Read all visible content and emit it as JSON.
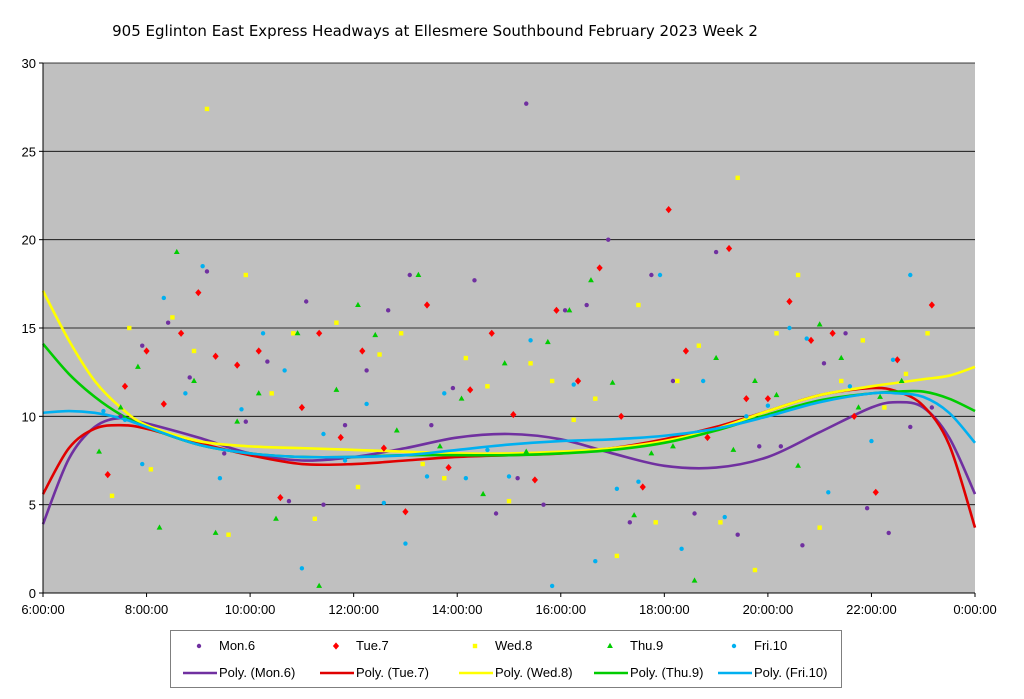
{
  "chart_data": {
    "type": "scatter",
    "title": "905 Eglinton East Express Headways at Ellesmere Southbound February 2023  Week 2",
    "xlabel": "",
    "ylabel": "",
    "xlim": [
      "6:00:00",
      "0:00:00"
    ],
    "ylim": [
      0,
      30
    ],
    "x_ticks": [
      "6:00:00",
      "8:00:00",
      "10:00:00",
      "12:00:00",
      "14:00:00",
      "16:00:00",
      "18:00:00",
      "20:00:00",
      "22:00:00",
      "0:00:00"
    ],
    "y_ticks": [
      0,
      5,
      10,
      15,
      20,
      25,
      30
    ],
    "grid": "horizontal",
    "background": "#c0c0c0",
    "legend_position": "bottom",
    "series": [
      {
        "name": "Mon.6",
        "marker": "circle",
        "color": "#7030a0",
        "x": [
          "7:30",
          "7:55",
          "8:25",
          "8:50",
          "9:10",
          "9:30",
          "9:55",
          "10:20",
          "10:45",
          "11:05",
          "11:25",
          "11:50",
          "12:15",
          "12:40",
          "13:05",
          "13:30",
          "13:55",
          "14:20",
          "14:45",
          "15:10",
          "15:20",
          "15:40",
          "16:05",
          "16:30",
          "16:55",
          "17:20",
          "17:45",
          "18:10",
          "18:35",
          "19:00",
          "19:25",
          "19:50",
          "20:15",
          "20:40",
          "21:05",
          "21:30",
          "21:55",
          "22:20",
          "22:45",
          "23:10"
        ],
        "y": [
          10,
          14,
          15.3,
          12.2,
          18.2,
          7.9,
          9.7,
          13.1,
          5.2,
          16.5,
          5,
          9.5,
          12.6,
          16,
          18,
          9.5,
          11.6,
          17.7,
          4.5,
          6.5,
          27.7,
          5,
          16,
          16.3,
          20,
          4,
          18,
          12,
          4.5,
          19.3,
          3.3,
          8.3,
          8.3,
          2.7,
          13,
          14.7,
          4.8,
          3.4,
          9.4,
          10.5
        ]
      },
      {
        "name": "Tue.7",
        "marker": "diamond",
        "color": "#ff0000",
        "x": [
          "7:15",
          "7:35",
          "8:00",
          "8:20",
          "8:40",
          "9:00",
          "9:20",
          "9:45",
          "10:10",
          "10:35",
          "11:00",
          "11:20",
          "11:45",
          "12:10",
          "12:35",
          "13:00",
          "13:25",
          "13:50",
          "14:15",
          "14:40",
          "15:05",
          "15:30",
          "15:55",
          "16:20",
          "16:45",
          "17:10",
          "17:35",
          "18:05",
          "18:25",
          "18:50",
          "19:15",
          "19:35",
          "20:00",
          "20:25",
          "20:50",
          "21:15",
          "21:40",
          "22:05",
          "22:30",
          "23:10"
        ],
        "y": [
          6.7,
          11.7,
          13.7,
          10.7,
          14.7,
          17,
          13.4,
          12.9,
          13.7,
          5.4,
          10.5,
          14.7,
          8.8,
          13.7,
          8.2,
          4.6,
          16.3,
          7.1,
          11.5,
          14.7,
          10.1,
          6.4,
          16,
          12,
          18.4,
          10,
          6,
          21.7,
          13.7,
          8.8,
          19.5,
          11,
          11,
          16.5,
          14.3,
          14.7,
          10,
          5.7,
          13.2,
          16.3
        ]
      },
      {
        "name": "Wed.8",
        "marker": "square",
        "color": "#ffff00",
        "x": [
          "7:20",
          "7:40",
          "8:05",
          "8:30",
          "8:55",
          "9:10",
          "9:35",
          "9:55",
          "10:25",
          "10:50",
          "11:15",
          "11:40",
          "12:05",
          "12:30",
          "12:55",
          "13:20",
          "13:45",
          "14:10",
          "14:35",
          "15:00",
          "15:25",
          "15:50",
          "16:15",
          "16:40",
          "17:05",
          "17:30",
          "17:50",
          "18:15",
          "18:40",
          "19:05",
          "19:25",
          "19:45",
          "20:10",
          "20:35",
          "21:00",
          "21:25",
          "21:50",
          "22:15",
          "22:40",
          "23:05"
        ],
        "y": [
          5.5,
          15,
          7,
          15.6,
          13.7,
          27.4,
          3.3,
          18,
          11.3,
          14.7,
          4.2,
          15.3,
          6,
          13.5,
          14.7,
          7.3,
          6.5,
          13.3,
          11.7,
          5.2,
          13,
          12,
          9.8,
          11,
          2.1,
          16.3,
          4,
          12,
          14,
          4,
          23.5,
          1.3,
          14.7,
          18,
          3.7,
          12,
          14.3,
          10.5,
          12.4,
          14.7
        ]
      },
      {
        "name": "Thu.9",
        "marker": "triangle",
        "color": "#00cc00",
        "x": [
          "7:05",
          "7:30",
          "7:50",
          "8:15",
          "8:35",
          "8:55",
          "9:20",
          "9:45",
          "10:10",
          "10:30",
          "10:55",
          "11:20",
          "11:40",
          "12:05",
          "12:25",
          "12:50",
          "13:15",
          "13:40",
          "14:05",
          "14:30",
          "14:55",
          "15:20",
          "15:45",
          "16:10",
          "16:35",
          "17:00",
          "17:25",
          "17:45",
          "18:10",
          "18:35",
          "19:00",
          "19:20",
          "19:45",
          "20:10",
          "20:35",
          "21:00",
          "21:25",
          "21:45",
          "22:10",
          "22:35"
        ],
        "y": [
          8,
          10.5,
          12.8,
          3.7,
          19.3,
          12,
          3.4,
          9.7,
          11.3,
          4.2,
          14.7,
          0.4,
          11.5,
          16.3,
          14.6,
          9.2,
          18,
          8.3,
          11,
          5.6,
          13,
          8,
          14.2,
          16,
          17.7,
          11.9,
          4.4,
          7.9,
          8.3,
          0.7,
          13.3,
          8.1,
          12,
          11.2,
          7.2,
          15.2,
          13.3,
          10.5,
          11.1,
          12
        ]
      },
      {
        "name": "Fri.10",
        "marker": "circle",
        "color": "#00b0f0",
        "x": [
          "7:10",
          "7:35",
          "7:55",
          "8:20",
          "8:45",
          "9:05",
          "9:25",
          "9:50",
          "10:15",
          "10:40",
          "11:00",
          "11:25",
          "11:50",
          "12:15",
          "12:35",
          "13:00",
          "13:25",
          "13:45",
          "14:10",
          "14:35",
          "15:00",
          "15:25",
          "15:50",
          "16:15",
          "16:40",
          "17:05",
          "17:30",
          "17:55",
          "18:20",
          "18:45",
          "19:10",
          "19:35",
          "20:00",
          "20:25",
          "20:45",
          "21:10",
          "21:35",
          "22:00",
          "22:25",
          "22:45"
        ],
        "y": [
          10.3,
          9.8,
          7.3,
          16.7,
          11.3,
          18.5,
          6.5,
          10.4,
          14.7,
          12.6,
          1.4,
          9,
          7.5,
          10.7,
          5.1,
          2.8,
          6.6,
          11.3,
          6.5,
          8.1,
          6.6,
          14.3,
          0.4,
          11.8,
          1.8,
          5.9,
          6.3,
          18,
          2.5,
          12,
          4.3,
          10,
          10.6,
          15,
          14.4,
          5.7,
          11.7,
          8.6,
          13.2,
          18
        ]
      }
    ],
    "trendlines": [
      {
        "name": "Poly. (Mon.6)",
        "color": "#7030a0",
        "x": [
          "6:00",
          "6:30",
          "7:00",
          "7:30",
          "8:00",
          "9:00",
          "10:00",
          "11:00",
          "12:00",
          "13:00",
          "14:00",
          "15:00",
          "16:00",
          "17:00",
          "18:00",
          "19:00",
          "20:00",
          "21:00",
          "22:00",
          "22:30",
          "23:00",
          "23:30",
          "0:00"
        ],
        "y": [
          3.9,
          7.6,
          9.4,
          9.9,
          9.6,
          8.8,
          7.9,
          7.5,
          7.7,
          8.2,
          8.8,
          9.0,
          8.7,
          7.9,
          7.2,
          7.1,
          7.7,
          9.1,
          10.5,
          10.8,
          10.5,
          8.8,
          5.6
        ]
      },
      {
        "name": "Poly. (Tue.7)",
        "color": "#e00000",
        "x": [
          "6:00",
          "6:30",
          "7:00",
          "7:30",
          "8:00",
          "9:00",
          "10:00",
          "11:00",
          "12:00",
          "13:00",
          "14:00",
          "15:00",
          "16:00",
          "17:00",
          "18:00",
          "19:00",
          "20:00",
          "21:00",
          "22:00",
          "22:30",
          "23:00",
          "23:30",
          "0:00"
        ],
        "y": [
          5.6,
          8.2,
          9.3,
          9.5,
          9.3,
          8.5,
          7.8,
          7.3,
          7.3,
          7.5,
          7.7,
          7.8,
          7.9,
          8.2,
          8.7,
          9.4,
          10.3,
          11.2,
          11.6,
          11.4,
          10.6,
          8.4,
          3.7
        ]
      },
      {
        "name": "Poly. (Wed.8)",
        "color": "#ffff00",
        "x": [
          "6:00",
          "6:30",
          "7:00",
          "7:30",
          "8:00",
          "9:00",
          "10:00",
          "11:00",
          "12:00",
          "13:00",
          "14:00",
          "15:00",
          "16:00",
          "17:00",
          "18:00",
          "19:00",
          "20:00",
          "21:00",
          "22:00",
          "22:30",
          "23:00",
          "23:30",
          "0:00"
        ],
        "y": [
          17.1,
          14.3,
          12.0,
          10.5,
          9.5,
          8.6,
          8.3,
          8.2,
          8.1,
          8.0,
          7.9,
          7.9,
          8.0,
          8.2,
          8.6,
          9.3,
          10.3,
          11.2,
          11.7,
          11.9,
          12.1,
          12.3,
          12.8
        ]
      },
      {
        "name": "Poly. (Thu.9)",
        "color": "#00cc00",
        "x": [
          "6:00",
          "6:30",
          "7:00",
          "7:30",
          "8:00",
          "9:00",
          "10:00",
          "11:00",
          "12:00",
          "13:00",
          "14:00",
          "15:00",
          "16:00",
          "17:00",
          "18:00",
          "19:00",
          "20:00",
          "21:00",
          "22:00",
          "22:30",
          "23:00",
          "23:30",
          "0:00"
        ],
        "y": [
          14.1,
          12.4,
          11.1,
          10.1,
          9.4,
          8.4,
          7.9,
          7.7,
          7.7,
          7.8,
          7.8,
          7.8,
          7.9,
          8.1,
          8.5,
          9.2,
          10.1,
          10.9,
          11.3,
          11.4,
          11.4,
          11.0,
          10.3
        ]
      },
      {
        "name": "Poly. (Fri.10)",
        "color": "#00b0f0",
        "x": [
          "6:00",
          "6:30",
          "7:00",
          "7:30",
          "8:00",
          "9:00",
          "10:00",
          "11:00",
          "12:00",
          "13:00",
          "14:00",
          "15:00",
          "16:00",
          "17:00",
          "18:00",
          "19:00",
          "20:00",
          "21:00",
          "22:00",
          "22:30",
          "23:00",
          "23:30",
          "0:00"
        ],
        "y": [
          10.2,
          10.3,
          10.2,
          9.9,
          9.4,
          8.4,
          7.9,
          7.7,
          7.7,
          7.8,
          8.1,
          8.4,
          8.6,
          8.7,
          8.9,
          9.3,
          10.0,
          10.8,
          11.3,
          11.3,
          11.1,
          10.2,
          8.5
        ]
      }
    ]
  }
}
